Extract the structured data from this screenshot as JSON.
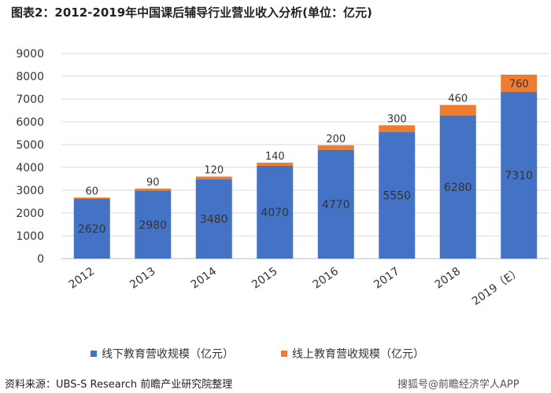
{
  "title": "图表2：2012-2019年中国课后辅导行业营业收入分析(单位：亿元)",
  "source": "资料来源：UBS-S Research 前瞻产业研究院整理",
  "watermark": "搜狐号@前瞻经济学人APP",
  "colors": {
    "offline": "#4472C4",
    "online": "#ED7D31",
    "grid": "#d9d9d9"
  },
  "chart_data": {
    "type": "bar",
    "stacked": true,
    "categories": [
      "2012",
      "2013",
      "2014",
      "2015",
      "2016",
      "2017",
      "2018",
      "2019（E）"
    ],
    "series": [
      {
        "name": "线下教育营收规模（亿元）",
        "values": [
          2620,
          2980,
          3480,
          4070,
          4770,
          5550,
          6280,
          7310
        ]
      },
      {
        "name": "线上教育营收规模（亿元）",
        "values": [
          60,
          90,
          120,
          140,
          200,
          300,
          460,
          760
        ]
      }
    ],
    "ylim": [
      0,
      9000
    ],
    "yticks": [
      0,
      1000,
      2000,
      3000,
      4000,
      5000,
      6000,
      7000,
      8000,
      9000
    ],
    "grid": true,
    "legend_position": "bottom"
  }
}
